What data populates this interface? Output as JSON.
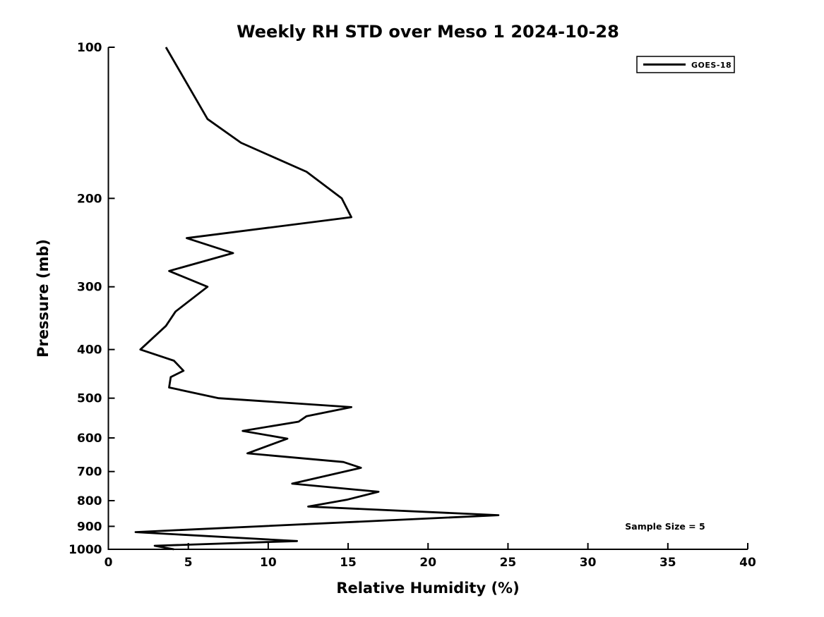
{
  "chart_data": {
    "type": "line",
    "title": "Weekly RH STD over Meso 1 2024-10-28",
    "xlabel": "Relative Humidity (%)",
    "ylabel": "Pressure (mb)",
    "xlim": [
      0,
      40
    ],
    "x_ticks": [
      0,
      5,
      10,
      15,
      20,
      25,
      30,
      35,
      40
    ],
    "ylim": [
      100,
      1000
    ],
    "y_ticks": [
      100,
      200,
      300,
      400,
      500,
      600,
      700,
      800,
      900,
      1000
    ],
    "y_scale": "log",
    "y_inverted": true,
    "grid": false,
    "legend": {
      "position": "upper right",
      "entries": [
        {
          "label": "GOES-18",
          "color": "#000000",
          "line_width": 3
        }
      ]
    },
    "annotation": "Sample Size = 5",
    "point_format": [
      "pressure_mb",
      "rh_std_pct"
    ],
    "series": [
      {
        "name": "GOES-18",
        "color": "#000000",
        "points": [
          [
            100,
            3.6
          ],
          [
            139,
            6.2
          ],
          [
            155,
            8.3
          ],
          [
            177,
            12.4
          ],
          [
            200,
            14.6
          ],
          [
            218,
            15.2
          ],
          [
            240,
            4.9
          ],
          [
            257,
            7.8
          ],
          [
            279,
            3.8
          ],
          [
            300,
            6.2
          ],
          [
            336,
            4.2
          ],
          [
            359,
            3.6
          ],
          [
            400,
            2.0
          ],
          [
            421,
            4.1
          ],
          [
            441,
            4.7
          ],
          [
            454,
            3.9
          ],
          [
            476,
            3.8
          ],
          [
            500,
            6.9
          ],
          [
            521,
            15.2
          ],
          [
            543,
            12.4
          ],
          [
            557,
            11.9
          ],
          [
            581,
            8.4
          ],
          [
            602,
            11.2
          ],
          [
            644,
            8.7
          ],
          [
            670,
            14.7
          ],
          [
            688,
            15.8
          ],
          [
            740,
            11.5
          ],
          [
            768,
            16.9
          ],
          [
            797,
            14.9
          ],
          [
            822,
            12.5
          ],
          [
            855,
            24.4
          ],
          [
            924,
            1.7
          ],
          [
            963,
            11.8
          ],
          [
            984,
            2.9
          ],
          [
            1000,
            4.1
          ]
        ]
      }
    ]
  },
  "colors": {
    "background": "#ffffff",
    "line": "#000000",
    "text": "#000000",
    "axis": "#000000"
  }
}
